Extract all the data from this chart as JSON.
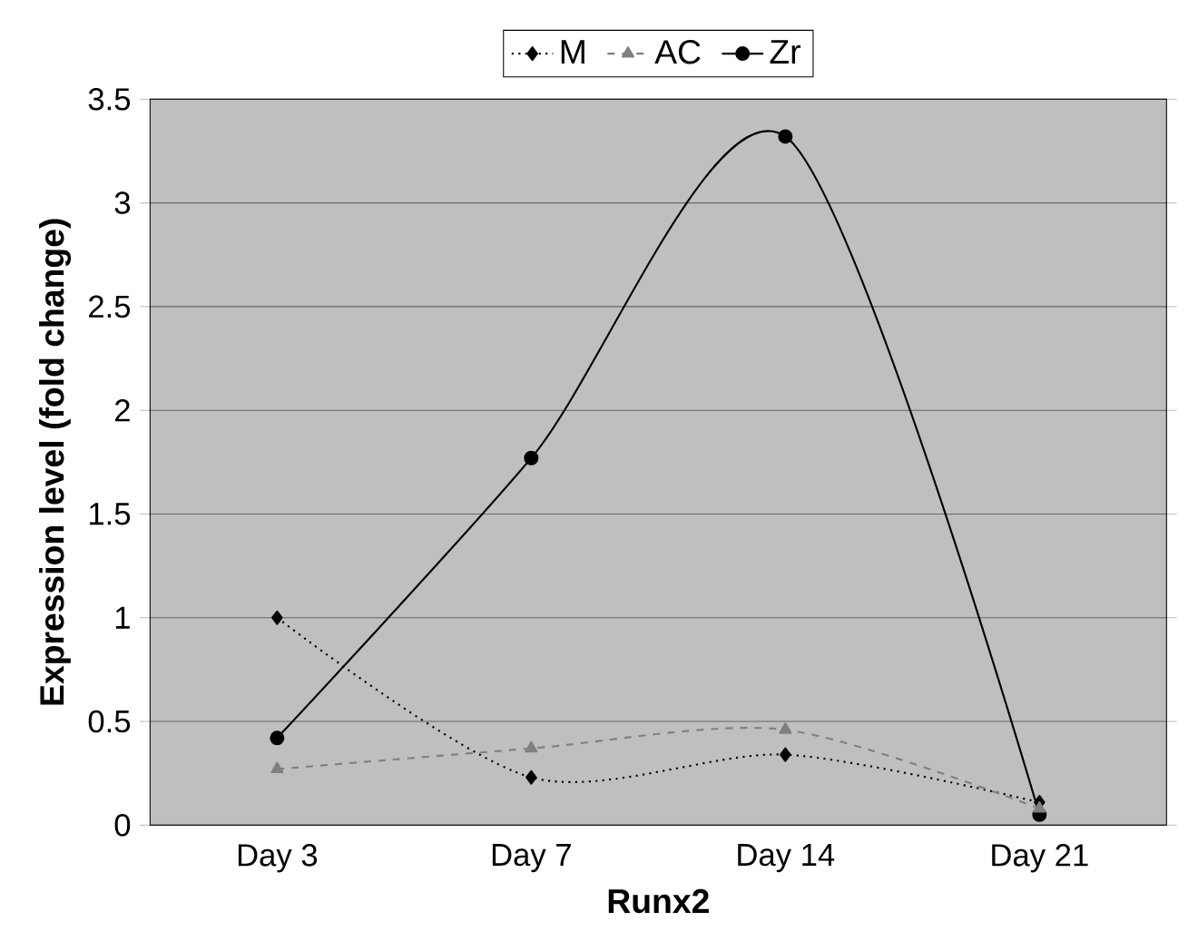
{
  "chart_data": {
    "type": "line",
    "xlabel": "Runx2",
    "ylabel": "Expression level (fold change)",
    "categories": [
      "Day 3",
      "Day 7",
      "Day 14",
      "Day 21"
    ],
    "series": [
      {
        "name": "M",
        "color": "#000000",
        "values": [
          1.0,
          0.23,
          0.34,
          0.11
        ],
        "marker": "diamond",
        "line_style": "dotted"
      },
      {
        "name": "AC",
        "color": "#808080",
        "values": [
          0.27,
          0.37,
          0.46,
          0.08
        ],
        "marker": "triangle",
        "line_style": "dashed"
      },
      {
        "name": "Zr",
        "color": "#000000",
        "values": [
          0.42,
          1.77,
          3.32,
          0.05
        ],
        "marker": "circle",
        "line_style": "solid"
      }
    ],
    "ylim": [
      0,
      3.5
    ],
    "yticks": [
      0,
      0.5,
      1,
      1.5,
      2,
      2.5,
      3,
      3.5
    ],
    "grid": "y",
    "legend": "top"
  }
}
